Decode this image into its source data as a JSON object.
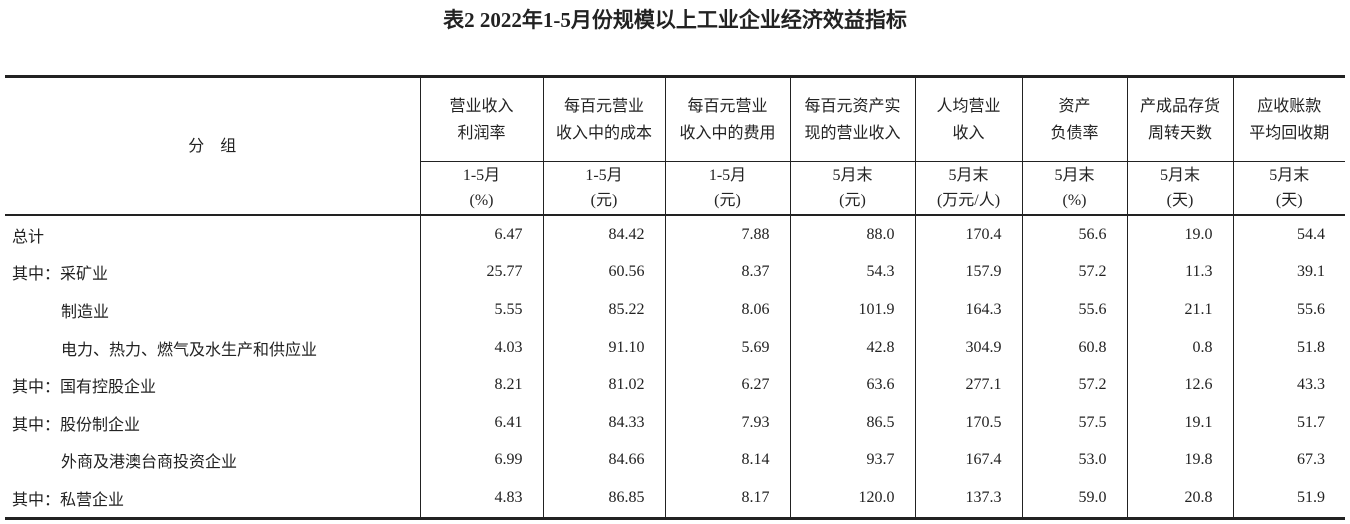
{
  "title": "表2  2022年1-5月份规模以上工业企业经济效益指标",
  "table": {
    "group_header": "分　组",
    "columns": [
      {
        "name": [
          "营业收入",
          "利润率"
        ],
        "period": "1-5月",
        "unit": "(%)"
      },
      {
        "name": [
          "每百元营业",
          "收入中的成本"
        ],
        "period": "1-5月",
        "unit": "(元)"
      },
      {
        "name": [
          "每百元营业",
          "收入中的费用"
        ],
        "period": "1-5月",
        "unit": "(元)"
      },
      {
        "name": [
          "每百元资产实",
          "现的营业收入"
        ],
        "period": "5月末",
        "unit": "(元)"
      },
      {
        "name": [
          "人均营业",
          "收入"
        ],
        "period": "5月末",
        "unit": "(万元/人)"
      },
      {
        "name": [
          "资产",
          "负债率"
        ],
        "period": "5月末",
        "unit": "(%)"
      },
      {
        "name": [
          "产成品存货",
          "周转天数"
        ],
        "period": "5月末",
        "unit": "(天)"
      },
      {
        "name": [
          "应收账款",
          "平均回收期"
        ],
        "period": "5月末",
        "unit": "(天)"
      }
    ],
    "rows": [
      {
        "label": "总计",
        "values": [
          "6.47",
          "84.42",
          "7.88",
          "88.0",
          "170.4",
          "56.6",
          "19.0",
          "54.4"
        ]
      },
      {
        "label": "其中：采矿业",
        "values": [
          "25.77",
          "60.56",
          "8.37",
          "54.3",
          "157.9",
          "57.2",
          "11.3",
          "39.1"
        ]
      },
      {
        "label": "制造业",
        "values": [
          "5.55",
          "85.22",
          "8.06",
          "101.9",
          "164.3",
          "55.6",
          "21.1",
          "55.6"
        ]
      },
      {
        "label": "电力、热力、燃气及水生产和供应业",
        "values": [
          "4.03",
          "91.10",
          "5.69",
          "42.8",
          "304.9",
          "60.8",
          "0.8",
          "51.8"
        ]
      },
      {
        "label": "其中：国有控股企业",
        "values": [
          "8.21",
          "81.02",
          "6.27",
          "63.6",
          "277.1",
          "57.2",
          "12.6",
          "43.3"
        ]
      },
      {
        "label": "其中：股份制企业",
        "values": [
          "6.41",
          "84.33",
          "7.93",
          "86.5",
          "170.5",
          "57.5",
          "19.1",
          "51.7"
        ]
      },
      {
        "label": "外商及港澳台商投资企业",
        "values": [
          "6.99",
          "84.66",
          "8.14",
          "93.7",
          "167.4",
          "53.0",
          "19.8",
          "67.3"
        ]
      },
      {
        "label": "其中：私营企业",
        "values": [
          "4.83",
          "86.85",
          "8.17",
          "120.0",
          "137.3",
          "59.0",
          "20.8",
          "51.9"
        ]
      }
    ]
  }
}
